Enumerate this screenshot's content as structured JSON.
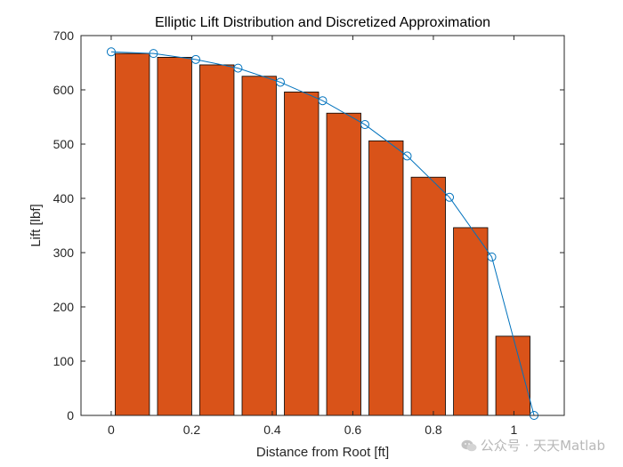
{
  "chart_data": {
    "type": "bar",
    "title": "Elliptic Lift Distribution and Discretized Approximation",
    "xlabel": "Distance from Root [ft]",
    "ylabel": "Lift [lbf]",
    "xlim": [
      -0.075,
      1.125
    ],
    "ylim": [
      0,
      700
    ],
    "xticks": [
      0,
      0.2,
      0.4,
      0.6,
      0.8,
      1
    ],
    "xtick_labels": [
      "0",
      "0.2",
      "0.4",
      "0.6",
      "0.8",
      "1"
    ],
    "yticks": [
      0,
      100,
      200,
      300,
      400,
      500,
      600,
      700
    ],
    "ytick_labels": [
      "0",
      "100",
      "200",
      "300",
      "400",
      "500",
      "600",
      "700"
    ],
    "grid": false,
    "series": [
      {
        "type": "bar",
        "color": "#D95319",
        "x": [
          0.0525,
          0.1575,
          0.2625,
          0.3675,
          0.4725,
          0.5775,
          0.6825,
          0.7875,
          0.8925,
          0.9975
        ],
        "values": [
          667,
          660,
          646,
          625,
          596,
          557,
          506,
          439,
          346,
          146
        ],
        "bar_width": 0.085
      },
      {
        "type": "line",
        "color": "#0072BD",
        "marker": "circle",
        "x": [
          0,
          0.105,
          0.21,
          0.315,
          0.42,
          0.525,
          0.63,
          0.735,
          0.84,
          0.945,
          1.05
        ],
        "values": [
          670,
          667,
          656,
          640,
          614,
          580,
          536,
          478,
          402,
          292,
          0
        ]
      }
    ]
  },
  "watermark": {
    "text": "公众号 · 天天Matlab"
  }
}
